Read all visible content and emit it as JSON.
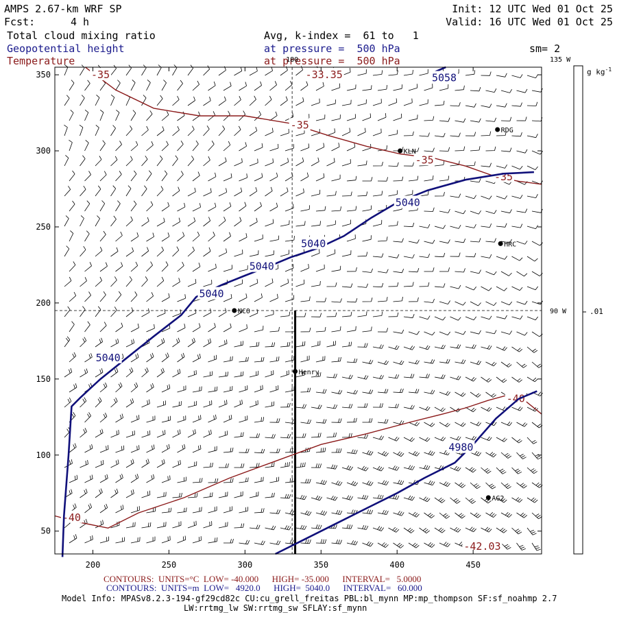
{
  "header": {
    "model_title": "AMPS 2.67-km WRF SP",
    "fcst_label": "Fcst:",
    "fcst_value": "4 h",
    "init": "Init: 12 UTC Wed 01 Oct 25",
    "valid": "Valid: 16 UTC Wed 01 Oct 25",
    "field_1": "Total cloud mixing ratio",
    "field_2": "Geopotential height",
    "field_3": "Temperature",
    "avg_line": "Avg, k-index =  61 to   1",
    "pressure_line_1": "at pressure =  500 hPa",
    "pressure_line_2": "at pressure =  500 hPa",
    "smoothing": "sm= 2",
    "colorbar_unit": "g kg",
    "colorbar_unit_exp": "-1",
    "colorbar_tick": ".01"
  },
  "colors": {
    "height_contour": "#10107a",
    "temperature_contour": "#8b1a1a",
    "barb": "#000000"
  },
  "chart_data": {
    "type": "contour",
    "xlim": [
      175,
      495
    ],
    "ylim": [
      35,
      355
    ],
    "x_ticks": [
      200,
      250,
      300,
      350,
      400,
      450
    ],
    "y_ticks": [
      50,
      100,
      150,
      200,
      250,
      300,
      350
    ],
    "grid": "dashed reference lines only",
    "meridian_labels": [
      {
        "text": "180",
        "x": 331,
        "y": 355
      },
      {
        "text": "135 W",
        "x": 495,
        "y": 355
      },
      {
        "text": "90 W",
        "x": 495,
        "y": 195
      }
    ],
    "reference_lines": {
      "vertical_x": 331,
      "horizontal_y": 195
    },
    "cross_section_line": {
      "x": 333,
      "y_from": 35,
      "y_to": 195
    },
    "stations": [
      {
        "name": "RDG",
        "x": 466,
        "y": 314
      },
      {
        "name": "KLN",
        "x": 402,
        "y": 300
      },
      {
        "name": "HRC",
        "x": 468,
        "y": 239
      },
      {
        "name": "NCO",
        "x": 293,
        "y": 195
      },
      {
        "name": "Henry",
        "x": 333,
        "y": 155
      },
      {
        "name": "AG2",
        "x": 460,
        "y": 72
      }
    ],
    "height_contours": [
      {
        "level": "5040",
        "points": [
          [
            180,
            33
          ],
          [
            181,
            60
          ],
          [
            184,
            100
          ],
          [
            186,
            132
          ],
          [
            192,
            138
          ],
          [
            205,
            150
          ],
          [
            220,
            162
          ],
          [
            240,
            178
          ],
          [
            258,
            192
          ],
          [
            268,
            204
          ],
          [
            285,
            212
          ],
          [
            300,
            218
          ],
          [
            318,
            225
          ],
          [
            330,
            230
          ],
          [
            348,
            236
          ],
          [
            365,
            244
          ],
          [
            383,
            256
          ],
          [
            400,
            266
          ],
          [
            420,
            274
          ],
          [
            445,
            281
          ],
          [
            470,
            285
          ],
          [
            490,
            286
          ]
        ]
      },
      {
        "level": "4980",
        "points": [
          [
            320,
            35
          ],
          [
            340,
            45
          ],
          [
            360,
            55
          ],
          [
            380,
            65
          ],
          [
            400,
            75
          ],
          [
            418,
            85
          ],
          [
            438,
            95
          ],
          [
            450,
            107
          ],
          [
            465,
            124
          ],
          [
            480,
            137
          ],
          [
            492,
            142
          ]
        ]
      },
      {
        "level": "5058",
        "points": [
          [
            425,
            352
          ],
          [
            432,
            355
          ]
        ]
      }
    ],
    "height_labels": [
      {
        "text": "5040",
        "x": 210,
        "y": 164
      },
      {
        "text": "5040",
        "x": 278,
        "y": 206
      },
      {
        "text": "5040",
        "x": 311,
        "y": 224
      },
      {
        "text": "5040",
        "x": 345,
        "y": 239
      },
      {
        "text": "5040",
        "x": 407,
        "y": 266
      },
      {
        "text": "4980",
        "x": 442,
        "y": 105
      },
      {
        "text": "5058",
        "x": 431,
        "y": 348
      }
    ],
    "temperature_contours": [
      {
        "level": "-35",
        "points": [
          [
            195,
            355
          ],
          [
            215,
            340
          ],
          [
            240,
            328
          ],
          [
            270,
            323
          ],
          [
            300,
            323
          ],
          [
            330,
            318
          ],
          [
            355,
            310
          ],
          [
            380,
            303
          ],
          [
            402,
            298
          ],
          [
            425,
            295
          ],
          [
            445,
            290
          ],
          [
            465,
            283
          ],
          [
            480,
            280
          ],
          [
            495,
            278
          ]
        ]
      },
      {
        "level": "-40",
        "points": [
          [
            175,
            60
          ],
          [
            190,
            56
          ],
          [
            210,
            52
          ],
          [
            230,
            62
          ],
          [
            260,
            72
          ],
          [
            290,
            85
          ],
          [
            320,
            96
          ],
          [
            350,
            107
          ],
          [
            380,
            114
          ],
          [
            410,
            122
          ],
          [
            430,
            127
          ],
          [
            445,
            131
          ],
          [
            460,
            136
          ],
          [
            475,
            140
          ],
          [
            485,
            135
          ],
          [
            495,
            127
          ]
        ]
      }
    ],
    "temperature_labels": [
      {
        "text": "-35",
        "x": 205,
        "y": 350
      },
      {
        "text": "-33.35",
        "x": 352,
        "y": 350
      },
      {
        "text": "-35",
        "x": 336,
        "y": 317
      },
      {
        "text": "-35",
        "x": 418,
        "y": 294
      },
      {
        "text": "-35",
        "x": 470,
        "y": 283
      },
      {
        "text": "-40",
        "x": 186,
        "y": 59
      },
      {
        "text": "-40",
        "x": 478,
        "y": 137
      },
      {
        "text": "-42.03",
        "x": 456,
        "y": 40
      }
    ],
    "wind_barbs": "regular grid of wind barbs covering the plot area"
  },
  "footer": {
    "contours_t": "CONTOURS:  UNITS=°C  LOW= -40.000      HIGH= -35.000      INTERVAL=   5.0000",
    "contours_z": "CONTOURS:  UNITS=m  LOW=   4920.0      HIGH=  5040.0      INTERVAL=   60.000",
    "model_info": "Model Info: MPASv8.2.3-194-gf29cd82c CU:cu_grell_freitas PBL:bl_mynn MP:mp_thompson SF:sf_noahmp 2.7",
    "model_info_2": "LW:rrtmg_lw SW:rrtmg_sw SFLAY:sf_mynn"
  }
}
